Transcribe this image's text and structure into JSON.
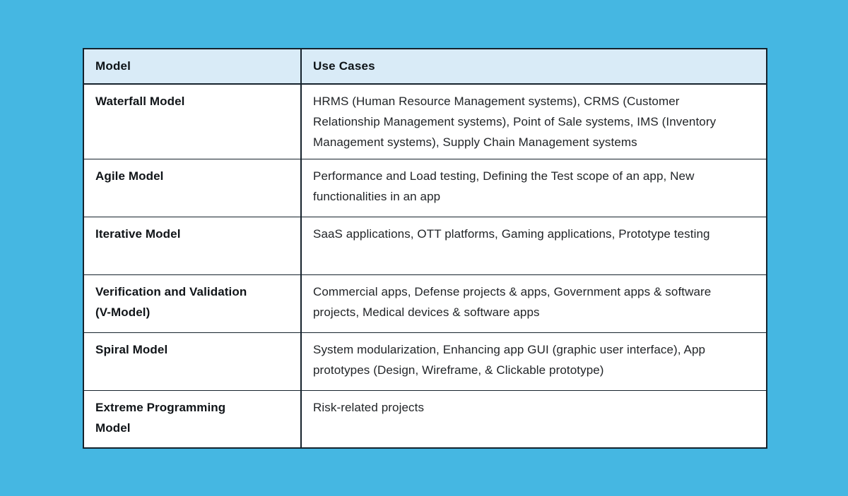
{
  "page": {
    "colors": {
      "background": "#45b7e2",
      "header_bg": "#d9ebf7",
      "border": "#15222c",
      "cell_bg": "#ffffff",
      "header_text": "#0e1418",
      "model_text": "#101418",
      "usecase_text": "#222528"
    }
  },
  "table": {
    "columns": [
      "Model",
      "Use Cases"
    ],
    "rows": [
      {
        "model": "Waterfall Model",
        "use_cases": "HRMS (Human Resource Management systems), CRMS (Customer Relationship Management systems), Point of Sale systems, IMS (Inventory Management systems), Supply Chain Management systems"
      },
      {
        "model": "Agile Model",
        "use_cases": "Performance and Load testing, Defining the Test scope of an app, New functionalities in an app"
      },
      {
        "model": "Iterative Model",
        "use_cases": "SaaS applications, OTT platforms, Gaming applications, Prototype testing"
      },
      {
        "model": "Verification and Validation (V-Model)",
        "use_cases": "Commercial apps, Defense projects & apps, Government apps & software projects, Medical devices & software apps"
      },
      {
        "model": "Spiral Model",
        "use_cases": "System modularization, Enhancing app GUI (graphic user interface), App prototypes (Design, Wireframe, & Clickable prototype)"
      },
      {
        "model": "Extreme Programming Model",
        "use_cases": "Risk-related projects"
      }
    ]
  }
}
